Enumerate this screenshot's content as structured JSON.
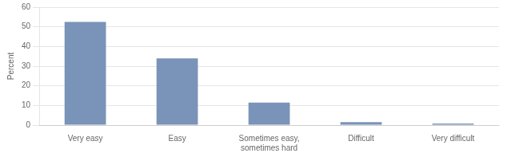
{
  "chart_data": {
    "type": "bar",
    "categories": [
      "Very easy",
      "Easy",
      "Sometimes easy,\nsometimes hard",
      "Difficult",
      "Very difficult"
    ],
    "values": [
      52.5,
      34.0,
      11.5,
      1.5,
      0.8
    ],
    "color": "#7a93b8",
    "ylabel": "Percent",
    "ylim": [
      0,
      60
    ],
    "yticks": [
      0,
      10,
      20,
      30,
      40,
      50,
      60
    ],
    "grid": true
  }
}
